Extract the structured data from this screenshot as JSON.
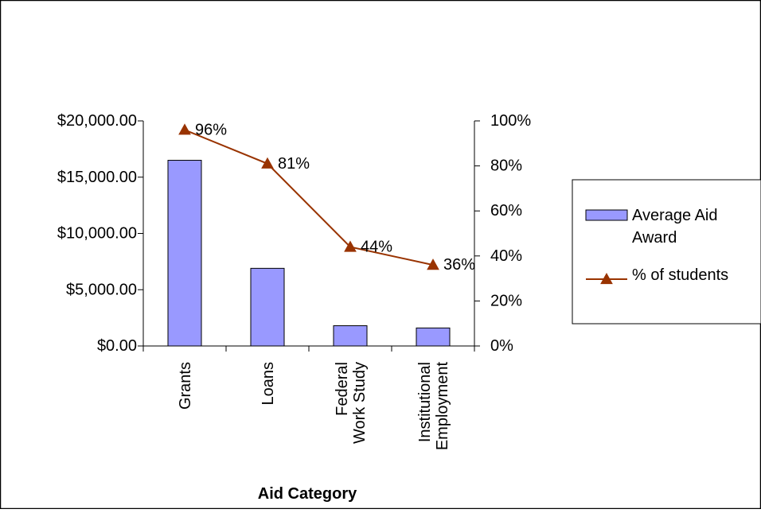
{
  "chart_data": {
    "type": "bar",
    "title": "",
    "xlabel": "Aid Category",
    "ylabel": "",
    "y2label": "",
    "categories": [
      [
        "Grants"
      ],
      [
        "Loans"
      ],
      [
        "Federal",
        "Work Study"
      ],
      [
        "Institutional",
        "Employment"
      ]
    ],
    "series": [
      {
        "name": "Average Aid Award",
        "type": "bar",
        "axis": "left",
        "values": [
          16500,
          6900,
          1800,
          1600
        ],
        "color": "#9999ff"
      },
      {
        "name": "% of students",
        "type": "line",
        "axis": "right",
        "values": [
          96,
          81,
          44,
          36
        ],
        "data_labels": [
          "96%",
          "81%",
          "44%",
          "36%"
        ],
        "color": "#993300",
        "marker": "triangle"
      }
    ],
    "ylim": [
      0,
      20000
    ],
    "y_ticks": [
      0,
      5000,
      10000,
      15000,
      20000
    ],
    "y_tick_labels": [
      "$0.00",
      "$5,000.00",
      "$10,000.00",
      "$15,000.00",
      "$20,000.00"
    ],
    "y2lim": [
      0,
      100
    ],
    "y2_ticks": [
      0,
      20,
      40,
      60,
      80,
      100
    ],
    "y2_tick_labels": [
      "0%",
      "20%",
      "40%",
      "60%",
      "80%",
      "100%"
    ],
    "legend": {
      "position": "right",
      "entries": [
        [
          "Average Aid",
          "Award"
        ],
        [
          "% of students"
        ]
      ]
    },
    "grid": false
  }
}
